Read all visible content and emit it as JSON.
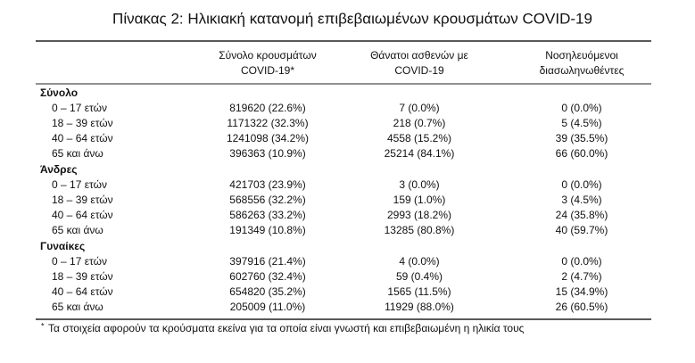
{
  "title": "Πίνακας 2: Ηλικιακή κατανομή επιβεβαιωμένων κρουσμάτων COVID-19",
  "table": {
    "columns": [
      [
        "Σύνολο κρουσμάτων",
        "COVID-19*"
      ],
      [
        "Θάνατοι ασθενών με",
        "COVID-19"
      ],
      [
        "Νοσηλευόμενοι",
        "διασωληνωθέντες"
      ]
    ],
    "sections": [
      {
        "name": "Σύνολο",
        "rows": [
          {
            "label": "0 – 17 ετών",
            "cells": [
              "819620 (22.6%)",
              "7 (0.0%)",
              "0 (0.0%)"
            ]
          },
          {
            "label": "18 – 39 ετών",
            "cells": [
              "1171322 (32.3%)",
              "218 (0.7%)",
              "5 (4.5%)"
            ]
          },
          {
            "label": "40 – 64 ετών",
            "cells": [
              "1241098 (34.2%)",
              "4558 (15.2%)",
              "39 (35.5%)"
            ]
          },
          {
            "label": "65 και άνω",
            "cells": [
              "396363 (10.9%)",
              "25214 (84.1%)",
              "66 (60.0%)"
            ]
          }
        ]
      },
      {
        "name": "Άνδρες",
        "rows": [
          {
            "label": "0 – 17 ετών",
            "cells": [
              "421703 (23.9%)",
              "3 (0.0%)",
              "0 (0.0%)"
            ]
          },
          {
            "label": "18 – 39 ετών",
            "cells": [
              "568556 (32.2%)",
              "159 (1.0%)",
              "3 (4.5%)"
            ]
          },
          {
            "label": "40 – 64 ετών",
            "cells": [
              "586263 (33.2%)",
              "2993 (18.2%)",
              "24 (35.8%)"
            ]
          },
          {
            "label": "65 και άνω",
            "cells": [
              "191349 (10.8%)",
              "13285 (80.8%)",
              "40 (59.7%)"
            ]
          }
        ]
      },
      {
        "name": "Γυναίκες",
        "rows": [
          {
            "label": "0 – 17 ετών",
            "cells": [
              "397916 (21.4%)",
              "4 (0.0%)",
              "0 (0.0%)"
            ]
          },
          {
            "label": "18 – 39 ετών",
            "cells": [
              "602760 (32.4%)",
              "59 (0.4%)",
              "2 (4.7%)"
            ]
          },
          {
            "label": "40 – 64 ετών",
            "cells": [
              "654820 (35.2%)",
              "1565 (11.5%)",
              "15 (34.9%)"
            ]
          },
          {
            "label": "65 και άνω",
            "cells": [
              "205009 (11.0%)",
              "11929 (88.0%)",
              "26 (60.5%)"
            ]
          }
        ]
      }
    ]
  },
  "footnote": {
    "marker": "*",
    "text": "Τα στοιχεία αφορούν τα κρούσματα εκείνα για τα οποία είναι γνωστή και επιβεβαιωμένη η ηλικία τους"
  }
}
